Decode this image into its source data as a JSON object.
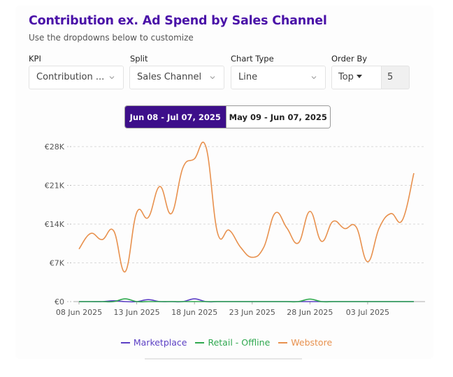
{
  "header": {
    "title": "Contribution ex. Ad Spend by Sales Channel",
    "subtitle": "Use the dropdowns below to customize"
  },
  "controls": {
    "kpi": {
      "label": "KPI",
      "value": "Contribution ..."
    },
    "split": {
      "label": "Split",
      "value": "Sales Channel"
    },
    "chart_type": {
      "label": "Chart Type",
      "value": "Line"
    },
    "order_by": {
      "label": "Order By",
      "direction": "Top",
      "count": "5"
    }
  },
  "date_ranges": [
    {
      "label": "Jun 08 - Jul 07, 2025",
      "active": true
    },
    {
      "label": "May 09 - Jun 07, 2025",
      "active": false
    }
  ],
  "colors": {
    "title": "#4a12a8",
    "active_range": "#3d0f8a",
    "marketplace": "#5b3fc4",
    "retail_offline": "#2fa84f",
    "webstore": "#e8914e",
    "grid": "#d9d9d9"
  },
  "chart_data": {
    "type": "line",
    "x_start": "08 Jun 2025",
    "x": [
      "08 Jun 2025",
      "09 Jun 2025",
      "10 Jun 2025",
      "11 Jun 2025",
      "12 Jun 2025",
      "13 Jun 2025",
      "14 Jun 2025",
      "15 Jun 2025",
      "16 Jun 2025",
      "17 Jun 2025",
      "18 Jun 2025",
      "19 Jun 2025",
      "20 Jun 2025",
      "21 Jun 2025",
      "22 Jun 2025",
      "23 Jun 2025",
      "24 Jun 2025",
      "25 Jun 2025",
      "26 Jun 2025",
      "27 Jun 2025",
      "28 Jun 2025",
      "29 Jun 2025",
      "30 Jun 2025",
      "01 Jul 2025",
      "02 Jul 2025",
      "03 Jul 2025",
      "04 Jul 2025",
      "05 Jul 2025",
      "06 Jul 2025",
      "07 Jul 2025"
    ],
    "x_tick_labels": [
      "08 Jun 2025",
      "13 Jun 2025",
      "18 Jun 2025",
      "23 Jun 2025",
      "28 Jun 2025",
      "03 Jul 2025"
    ],
    "x_tick_indices": [
      0,
      5,
      10,
      15,
      20,
      25
    ],
    "y_tick_labels": [
      "€0",
      "€7K",
      "€14K",
      "€21K",
      "€28K"
    ],
    "y_ticks": [
      0,
      7000,
      14000,
      21000,
      28000
    ],
    "ylim": [
      0,
      28000
    ],
    "grid": true,
    "legend_position": "bottom-center",
    "series": [
      {
        "name": "Marketplace",
        "values": [
          0,
          0,
          0,
          150,
          0,
          0,
          350,
          0,
          0,
          0,
          500,
          0,
          0,
          0,
          0,
          0,
          0,
          0,
          0,
          0,
          0,
          0,
          0,
          0,
          0,
          0,
          0,
          0,
          0,
          0
        ]
      },
      {
        "name": "Retail - Offline",
        "values": [
          0,
          0,
          0,
          0,
          500,
          0,
          0,
          0,
          0,
          0,
          0,
          0,
          0,
          0,
          0,
          0,
          0,
          0,
          0,
          0,
          450,
          0,
          0,
          0,
          0,
          0,
          0,
          0,
          0,
          0
        ]
      },
      {
        "name": "Webstore",
        "values": [
          9500,
          12300,
          11200,
          12800,
          5400,
          16100,
          15200,
          20800,
          15900,
          24200,
          25800,
          27900,
          12400,
          12900,
          9800,
          8000,
          9800,
          16000,
          13300,
          10600,
          16300,
          10900,
          14500,
          13200,
          13500,
          7200,
          13300,
          15900,
          14700,
          23200
        ]
      }
    ]
  }
}
